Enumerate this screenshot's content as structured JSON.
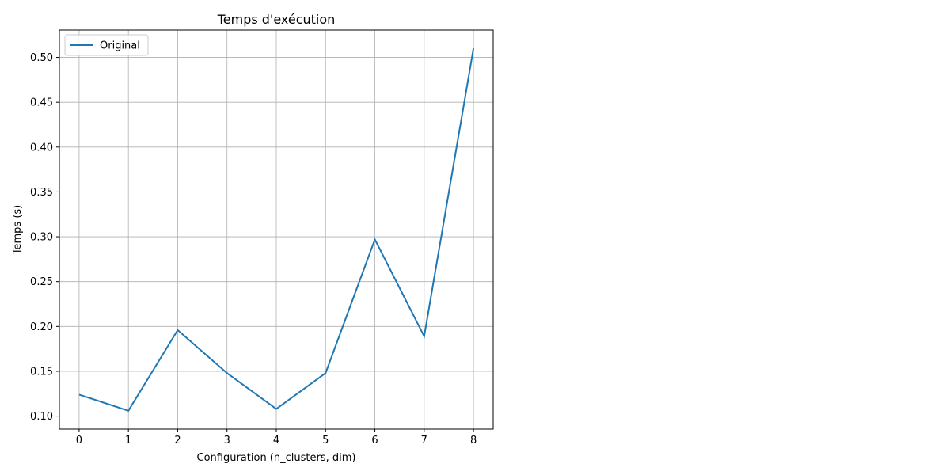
{
  "chart_data": {
    "type": "line",
    "title": "Temps d'exécution",
    "xlabel": "Configuration (n_clusters, dim)",
    "ylabel": "Temps (s)",
    "x": [
      0,
      1,
      2,
      3,
      4,
      5,
      6,
      7,
      8
    ],
    "xlim": [
      -0.4,
      8.4
    ],
    "ylim": [
      0.0855,
      0.5305
    ],
    "xticks": [
      "0",
      "1",
      "2",
      "3",
      "4",
      "5",
      "6",
      "7",
      "8"
    ],
    "yticks": [
      "0.10",
      "0.15",
      "0.20",
      "0.25",
      "0.30",
      "0.35",
      "0.40",
      "0.45",
      "0.50"
    ],
    "grid": true,
    "legend_position": "top-left",
    "series": [
      {
        "name": "Original",
        "color": "#1f77b4",
        "values": [
          0.124,
          0.106,
          0.196,
          0.148,
          0.108,
          0.148,
          0.297,
          0.189,
          0.51
        ]
      }
    ]
  }
}
